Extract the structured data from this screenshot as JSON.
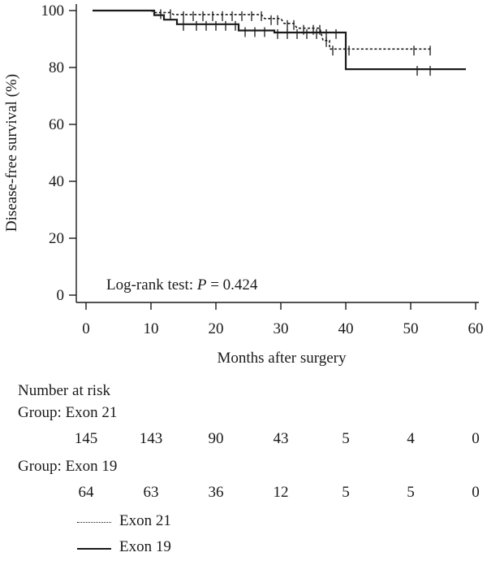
{
  "chart_data": {
    "type": "line",
    "title": "",
    "xlabel": "Months after surgery",
    "ylabel": "Disease-free survival (%)",
    "xlim": [
      0,
      60
    ],
    "ylim": [
      0,
      100
    ],
    "x_ticks": [
      0,
      10,
      20,
      30,
      40,
      50,
      60
    ],
    "y_ticks": [
      0,
      20,
      40,
      60,
      80,
      100
    ],
    "grid": false,
    "annotation": {
      "prefix": "Log-rank test: ",
      "p_symbol": "P",
      "suffix": " = 0.424"
    },
    "series": [
      {
        "name": "Exon 21",
        "line_style": "dotted",
        "color": "#1a1a1a",
        "steps": [
          [
            1,
            100
          ],
          [
            10,
            100
          ],
          [
            10.5,
            99.3
          ],
          [
            13,
            99.3
          ],
          [
            13.5,
            98.6
          ],
          [
            27,
            98.6
          ],
          [
            27.5,
            97.2
          ],
          [
            30,
            97.2
          ],
          [
            30.5,
            95.5
          ],
          [
            32,
            95.5
          ],
          [
            32.5,
            93.8
          ],
          [
            36,
            93.8
          ],
          [
            36.5,
            89.5
          ],
          [
            37.5,
            89.5
          ],
          [
            37.5,
            86.5
          ],
          [
            53,
            86.5
          ]
        ],
        "censored": [
          11.5,
          13,
          15,
          16.5,
          18,
          19.5,
          21,
          22.5,
          24,
          25.5,
          27,
          28.5,
          29.5,
          31,
          32,
          33.5,
          35,
          36,
          37,
          38,
          40.5,
          50.5,
          53
        ]
      },
      {
        "name": "Exon 19",
        "line_style": "solid",
        "color": "#1a1a1a",
        "steps": [
          [
            1,
            100
          ],
          [
            10.5,
            100
          ],
          [
            10.5,
            98.4
          ],
          [
            12,
            98.4
          ],
          [
            12,
            96.8
          ],
          [
            14,
            96.8
          ],
          [
            14,
            95.2
          ],
          [
            23.5,
            95.2
          ],
          [
            23.5,
            93.0
          ],
          [
            29,
            93.0
          ],
          [
            29,
            92.3
          ],
          [
            40,
            92.3
          ],
          [
            40,
            79.4
          ],
          [
            58.5,
            79.4
          ]
        ],
        "censored": [
          15,
          17,
          18.5,
          20,
          21.5,
          23,
          24.5,
          26,
          27.5,
          29.5,
          31,
          32.5,
          34,
          35.5,
          37,
          38.5,
          51,
          53
        ]
      }
    ]
  },
  "risk_table": {
    "title": "Number at risk",
    "times": [
      0,
      10,
      20,
      30,
      40,
      50,
      60
    ],
    "groups": [
      {
        "label": "Group: Exon 21",
        "values": [
          "145",
          "143",
          "90",
          "43",
          "5",
          "4",
          "0"
        ]
      },
      {
        "label": "Group: Exon 19",
        "values": [
          "64",
          "63",
          "36",
          "12",
          "5",
          "5",
          "0"
        ]
      }
    ]
  },
  "legend": {
    "placement": "bottom-left",
    "items": [
      {
        "label": "Exon 21",
        "line_style": "dotted"
      },
      {
        "label": "Exon 19",
        "line_style": "solid"
      }
    ]
  }
}
